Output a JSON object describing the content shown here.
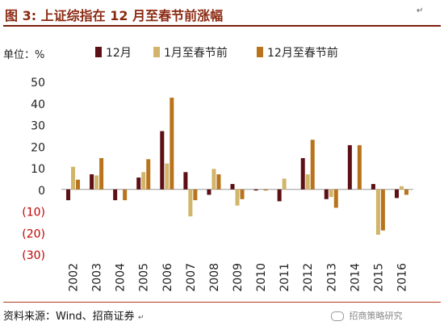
{
  "title": "图 3:  上证综指在 12 月至春节前涨幅",
  "return_mark": "↵",
  "source": "资料来源：Wind、招商证券",
  "watermark": "招商策略研究",
  "chart_data": {
    "type": "bar",
    "ylabel": "单位：%",
    "ylim": [
      -30,
      50
    ],
    "yticks": [
      50,
      40,
      30,
      20,
      10,
      0,
      -10,
      -20,
      -30
    ],
    "ytick_labels": [
      "50",
      "40",
      "30",
      "20",
      "10",
      "0",
      "(10)",
      "(20)",
      "(30)"
    ],
    "negative_label_color": "#c00000",
    "grid": false,
    "legend_position": "top",
    "categories": [
      "2002",
      "2003",
      "2004",
      "2005",
      "2006",
      "2007",
      "2008",
      "2009",
      "2010",
      "2011",
      "2012",
      "2013",
      "2014",
      "2015",
      "2016"
    ],
    "series": [
      {
        "name": "12月",
        "color": "#5c0f14",
        "values": [
          -5,
          7,
          -5,
          5.5,
          27,
          8,
          -2.5,
          2.5,
          -0.5,
          -5.5,
          14.5,
          -4.5,
          20.5,
          2.5,
          -4
        ]
      },
      {
        "name": "1月至春节前",
        "color": "#d2b56b",
        "values": [
          10.5,
          6.5,
          0,
          8,
          12,
          -12.5,
          9.5,
          -7.5,
          0,
          5,
          7,
          -3.5,
          0,
          -21,
          1.5
        ]
      },
      {
        "name": "12月至春节前",
        "color": "#b8741d",
        "values": [
          4.5,
          14.5,
          -5,
          14,
          42.5,
          -5,
          7,
          -4.5,
          -0.5,
          0,
          23,
          -8.5,
          20.5,
          -19,
          -2.5
        ]
      }
    ]
  }
}
